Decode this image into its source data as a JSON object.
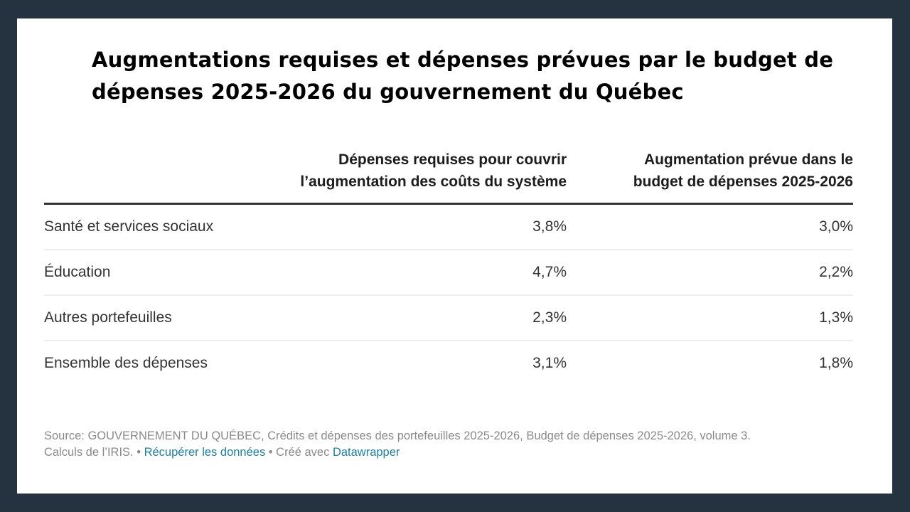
{
  "colors": {
    "background": "#253341",
    "card": "#ffffff",
    "title": "#000000",
    "text": "#333333",
    "footer_text": "#8a8a8a",
    "link": "#1d81a2"
  },
  "title": "Augmentations requises et dépenses prévues par le budget de dépenses 2025-2026 du gouvernement du Québec",
  "chart_data": {
    "type": "table",
    "title": "Augmentations requises et dépenses prévues par le budget de dépenses 2025-2026 du gouvernement du Québec",
    "columns": [
      "",
      "Dépenses requises pour couvrir l’augmentation des coûts du système",
      "Augmentation prévue dans le budget de dépenses 2025-2026"
    ],
    "rows": [
      {
        "label": "Santé et services sociaux",
        "required": "3,8%",
        "planned": "3,0%"
      },
      {
        "label": "Éducation",
        "required": "4,7%",
        "planned": "2,2%"
      },
      {
        "label": "Autres portefeuilles",
        "required": "2,3%",
        "planned": "1,3%"
      },
      {
        "label": "Ensemble des dépenses",
        "required": "3,1%",
        "planned": "1,8%"
      }
    ],
    "series": [
      {
        "name": "Dépenses requises pour couvrir l’augmentation des coûts du système",
        "values": [
          3.8,
          4.7,
          2.3,
          3.1
        ]
      },
      {
        "name": "Augmentation prévue dans le budget de dépenses 2025-2026",
        "values": [
          3.0,
          2.2,
          1.3,
          1.8
        ]
      }
    ],
    "categories": [
      "Santé et services sociaux",
      "Éducation",
      "Autres portefeuilles",
      "Ensemble des dépenses"
    ],
    "unit": "%"
  },
  "footer": {
    "source": "Source: GOUVERNEMENT DU QUÉBEC, Crédits et dépenses des portefeuilles 2025-2026, Budget de dépenses 2025-2026, volume 3.",
    "calc": "Calculs de l’IRIS.",
    "sep1": " • ",
    "get_data_link": "Récupérer les données",
    "sep2": " • Créé avec ",
    "datawrapper_link": "Datawrapper"
  }
}
